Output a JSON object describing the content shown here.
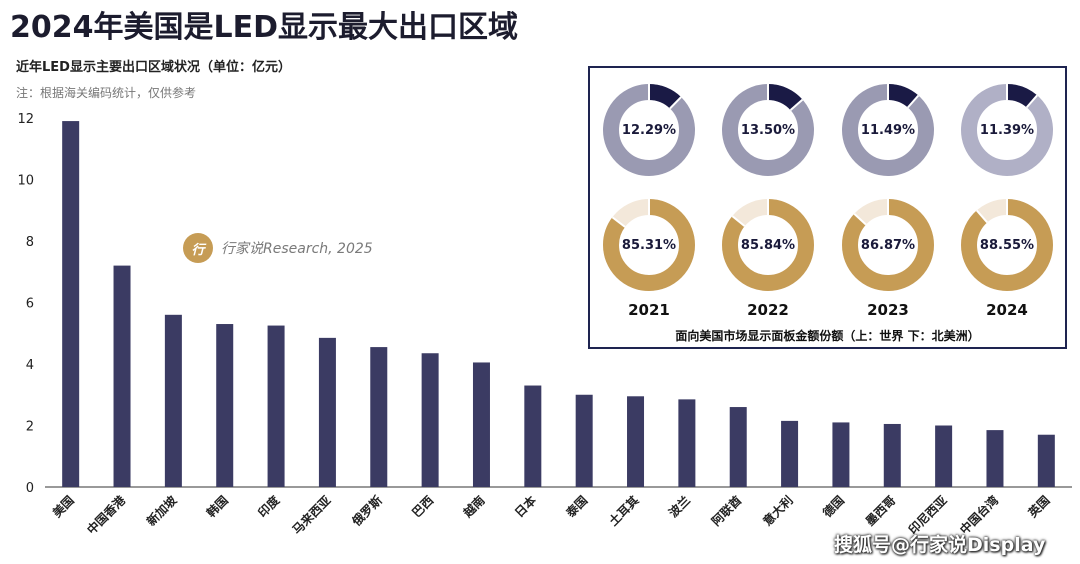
{
  "header": {
    "title": "2024年美国是LED显示最大出口区域",
    "subtitle": "近年LED显示主要出口区域状况（单位：亿元）",
    "note": "注：根据海关编码统计，仅供参考"
  },
  "watermark": {
    "logo_text": "行",
    "text": "行家说Research, 2025"
  },
  "source_mark": "搜狐号@行家说Display",
  "colors": {
    "bar": "#3b3b63",
    "world_light": "#9a9ab2",
    "world_dark": "#1a1a45",
    "world_light_2024": "#b0b0c6",
    "na_gold": "#c69c55",
    "na_light": "#f3e8da"
  },
  "chart_data": [
    {
      "type": "bar",
      "categories": [
        "美国",
        "中国香港",
        "新加坡",
        "韩国",
        "印度",
        "马来西亚",
        "俄罗斯",
        "巴西",
        "越南",
        "日本",
        "泰国",
        "土耳其",
        "波兰",
        "阿联酋",
        "意大利",
        "德国",
        "墨西哥",
        "印尼西亚",
        "中国台湾",
        "英国"
      ],
      "values": [
        11.9,
        7.2,
        5.6,
        5.3,
        5.25,
        4.85,
        4.55,
        4.35,
        4.05,
        3.3,
        3.0,
        2.95,
        2.85,
        2.6,
        2.15,
        2.1,
        2.05,
        2.0,
        1.85,
        1.7
      ],
      "ylim": [
        0,
        12
      ],
      "yticks": [
        "0",
        "2",
        "4",
        "6",
        "8",
        "10",
        "12"
      ],
      "grid": false
    },
    {
      "type": "pie",
      "caption": "面向美国市场显示面板金额份额（上：世界   下：北美洲）",
      "years": [
        "2021",
        "2022",
        "2023",
        "2024"
      ],
      "world": [
        {
          "value": 12.29,
          "label": "12.29%"
        },
        {
          "value": 13.5,
          "label": "13.50%"
        },
        {
          "value": 11.49,
          "label": "11.49%"
        },
        {
          "value": 11.39,
          "label": "11.39%"
        }
      ],
      "north_america": [
        {
          "value": 85.31,
          "label": "85.31%"
        },
        {
          "value": 85.84,
          "label": "85.84%"
        },
        {
          "value": 86.87,
          "label": "86.87%"
        },
        {
          "value": 88.55,
          "label": "88.55%"
        }
      ]
    }
  ]
}
